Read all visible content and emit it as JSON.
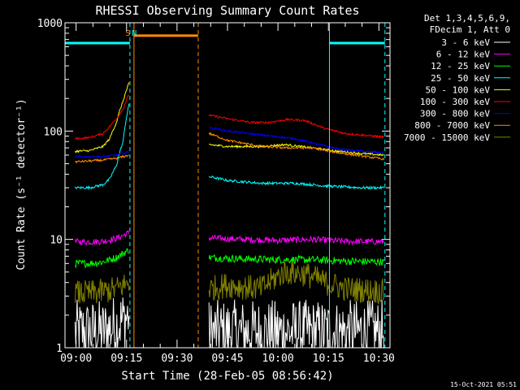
{
  "chart_data": {
    "type": "line",
    "title": "RHESSI Observing Summary Count Rates",
    "xlabel": "Start Time (28-Feb-05 08:56:42)",
    "ylabel": "Count Rate (s⁻¹ detector⁻¹)",
    "yscale": "log",
    "ylim": [
      1,
      1000
    ],
    "xlim_min": [
      -3.3,
      93.3
    ],
    "y_ticks": [
      {
        "value": 1,
        "label": "1"
      },
      {
        "value": 10,
        "label": "10"
      },
      {
        "value": 100,
        "label": "100"
      },
      {
        "value": 1000,
        "label": "1000"
      }
    ],
    "x_ticks": [
      {
        "value": 0,
        "label": "09:00"
      },
      {
        "value": 15,
        "label": "09:15"
      },
      {
        "value": 30,
        "label": "09:30"
      },
      {
        "value": 45,
        "label": "09:45"
      },
      {
        "value": 60,
        "label": "10:00"
      },
      {
        "value": 75,
        "label": "10:15"
      },
      {
        "value": 90,
        "label": "10:30"
      }
    ],
    "legend_header": [
      "Det 1,3,4,5,6,9,",
      "FDecim 1, Att 0"
    ],
    "flags": [
      {
        "label": "S",
        "x": 15.4,
        "color": "#ff8c00"
      },
      {
        "label": "N",
        "x": 17.3,
        "color": "#00ffff"
      }
    ],
    "markers": [
      {
        "name": "night-start",
        "x": 16.0,
        "color": "#00ffff",
        "style": "dashed"
      },
      {
        "name": "saa-start",
        "x": 17.2,
        "color": "#ff8c00",
        "style": "solid"
      },
      {
        "name": "saa-end",
        "x": 36.3,
        "color": "#ff8c00",
        "style": "dashed"
      },
      {
        "name": "night-end",
        "x": 75.3,
        "color": "#00ffff",
        "style": "solid"
      },
      {
        "name": "night-start-2",
        "x": 91.8,
        "color": "#00ffff",
        "style": "dashed"
      }
    ],
    "status_bars": [
      {
        "name": "night-bar",
        "x": [
          -3.3,
          16.0
        ],
        "y": 650,
        "color": "#00ffff"
      },
      {
        "name": "saa-bar",
        "x": [
          17.2,
          36.3
        ],
        "y": 760,
        "color": "#ff8c00"
      },
      {
        "name": "night-bar-2",
        "x": [
          75.3,
          91.8
        ],
        "y": 650,
        "color": "#00ffff"
      }
    ],
    "series": [
      {
        "name": "3 - 6 keV",
        "color": "#ffffff",
        "segments": [
          {
            "x": [
              -0.3,
              4,
              8,
              12,
              15.8
            ],
            "y": [
              1.4,
              1.4,
              1.4,
              1.6,
              2.0
            ],
            "noise": 0.3
          },
          {
            "x": [
              39.5,
              50,
              60,
              70,
              80,
              91.5
            ],
            "y": [
              1.4,
              1.4,
              1.4,
              1.4,
              1.4,
              1.4
            ],
            "noise": 0.3
          }
        ]
      },
      {
        "name": "6 - 12 keV",
        "color": "#ff00ff",
        "segments": [
          {
            "x": [
              -0.3,
              4,
              8,
              12,
              15.8
            ],
            "y": [
              9.5,
              9.5,
              9.6,
              10.2,
              11.5
            ],
            "noise": 0.03
          },
          {
            "x": [
              39.5,
              50,
              60,
              70,
              80,
              91.5
            ],
            "y": [
              10.3,
              10.0,
              9.8,
              10.0,
              9.6,
              9.5
            ],
            "noise": 0.03
          }
        ]
      },
      {
        "name": "12 - 25 keV",
        "color": "#00ff00",
        "segments": [
          {
            "x": [
              -0.3,
              4,
              8,
              12,
              15.8
            ],
            "y": [
              6.0,
              6.0,
              6.2,
              6.8,
              8.0
            ],
            "noise": 0.035
          },
          {
            "x": [
              39.5,
              50,
              60,
              70,
              80,
              91.5
            ],
            "y": [
              6.8,
              6.6,
              6.5,
              6.5,
              6.3,
              6.2
            ],
            "noise": 0.035
          }
        ]
      },
      {
        "name": "25 - 50 keV",
        "color": "#00ffff",
        "segments": [
          {
            "x": [
              -0.3,
              4,
              8,
              10,
              12,
              14,
              15.8
            ],
            "y": [
              30,
              30,
              32,
              36,
              48,
              80,
              180
            ],
            "noise": 0.012
          },
          {
            "x": [
              39.5,
              45,
              55,
              65,
              75,
              85,
              91.5
            ],
            "y": [
              38,
              35,
              33,
              33,
              31,
              30,
              30
            ],
            "noise": 0.012
          }
        ]
      },
      {
        "name": "50 - 100 keV",
        "color": "#ffff00",
        "segments": [
          {
            "x": [
              -0.3,
              4,
              8,
              10,
              12,
              14,
              15.8
            ],
            "y": [
              65,
              66,
              72,
              85,
              120,
              190,
              280
            ],
            "noise": 0.01
          },
          {
            "x": [
              39.5,
              45,
              55,
              62,
              70,
              78,
              85,
              91.5
            ],
            "y": [
              75,
              72,
              72,
              75,
              70,
              65,
              62,
              60
            ],
            "noise": 0.01
          }
        ]
      },
      {
        "name": "100 - 300 keV",
        "color": "#ff0000",
        "segments": [
          {
            "x": [
              -0.3,
              4,
              8,
              10,
              12,
              14,
              15.8
            ],
            "y": [
              85,
              87,
              95,
              110,
              130,
              160,
              220
            ],
            "noise": 0.01
          },
          {
            "x": [
              39.5,
              45,
              52,
              57,
              63,
              68,
              74,
              80,
              91.5
            ],
            "y": [
              140,
              130,
              120,
              120,
              128,
              125,
              105,
              95,
              88
            ],
            "noise": 0.01
          }
        ]
      },
      {
        "name": "300 - 800 keV",
        "color": "#0000ff",
        "segments": [
          {
            "x": [
              -0.3,
              4,
              8,
              12,
              14,
              15.8
            ],
            "y": [
              58,
              58,
              58,
              60,
              62,
              64
            ],
            "noise": 0.01
          },
          {
            "x": [
              39.5,
              45,
              55,
              65,
              70,
              78,
              91.5
            ],
            "y": [
              108,
              100,
              92,
              85,
              78,
              68,
              63
            ],
            "noise": 0.01
          }
        ]
      },
      {
        "name": "800 - 7000 keV",
        "color": "#ff8c00",
        "segments": [
          {
            "x": [
              -0.3,
              4,
              8,
              12,
              14,
              15.8
            ],
            "y": [
              52,
              53,
              54,
              56,
              58,
              60
            ],
            "noise": 0.01
          },
          {
            "x": [
              39.5,
              45,
              55,
              62,
              70,
              78,
              91.5
            ],
            "y": [
              95,
              82,
              72,
              70,
              70,
              63,
              55
            ],
            "noise": 0.01
          }
        ]
      },
      {
        "name": "7000 - 15000 keV",
        "color": "#808000",
        "segments": [
          {
            "x": [
              -0.3,
              4,
              8,
              12,
              15.8
            ],
            "y": [
              3.2,
              3.2,
              3.3,
              3.5,
              4.0
            ],
            "noise": 0.12
          },
          {
            "x": [
              39.5,
              45,
              55,
              62,
              68,
              74,
              80,
              91.5
            ],
            "y": [
              3.5,
              3.8,
              3.5,
              5.0,
              4.8,
              4.0,
              3.5,
              3.3
            ],
            "noise": 0.12
          }
        ]
      }
    ]
  },
  "footer": {
    "timestamp": "15-Oct-2021 05:51"
  }
}
